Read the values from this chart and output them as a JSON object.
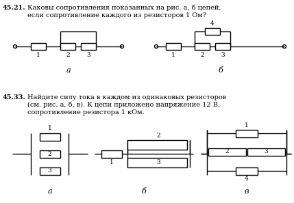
{
  "background_color": "#ffffff",
  "text_4521_num": "45.21.",
  "text_4521_l1": "Каковы сопротивления показанных на рис. а, б цепей,",
  "text_4521_l2": "если сопротивление каждого из резисторов 1 Ом?",
  "text_4533_num": "45.33.",
  "text_4533_l1": "Найдите силу тока в каждом из одинаковых резисторов",
  "text_4533_l2": "(см. рис. а, б, в). К цепи приложено напряжение 12 В,",
  "text_4533_l3": "сопротивление резистора 1 кОм.",
  "lw": 1.0
}
